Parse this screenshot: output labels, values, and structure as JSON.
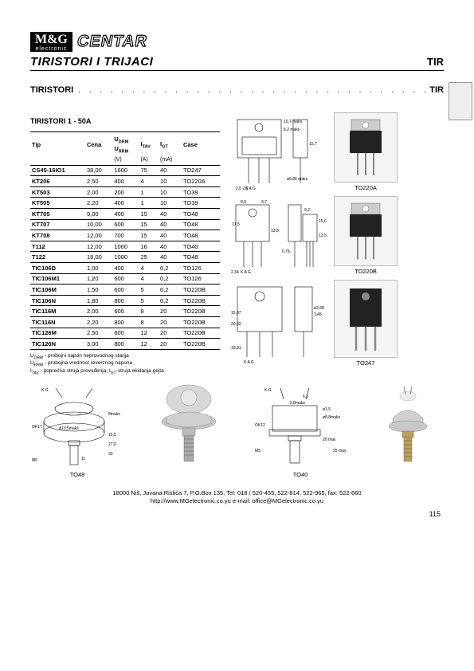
{
  "logo": {
    "top": "M&G",
    "bottom": "electronic",
    "centar": "CENTAR"
  },
  "title": {
    "left": "TIRISTORI I TRIJACI",
    "right": "TIR"
  },
  "subtitle": {
    "left": "TIRISTORI",
    "right": "TIR"
  },
  "section": "TIRISTORI  1 - 50A",
  "table": {
    "headers_r1": [
      "Tip",
      "Cena",
      "U",
      "I",
      "I",
      "Case"
    ],
    "headers_r1_sub": [
      "",
      "",
      "DRM",
      "TAV",
      "GT",
      ""
    ],
    "headers_r2_extra": "U",
    "headers_r2_extra_sub": "RRM",
    "headers_r2": [
      "",
      "",
      "(V)",
      "(A)",
      "(mA)",
      ""
    ],
    "rows": [
      [
        "CS45-16IO1",
        "38,00",
        "1600",
        "75",
        "40",
        "TO247"
      ],
      [
        "KT206",
        "2,50",
        "400",
        "4",
        "10",
        "TO220A"
      ],
      [
        "KT503",
        "2,00",
        "200",
        "1",
        "10",
        "TO39"
      ],
      [
        "KT505",
        "2,20",
        "400",
        "1",
        "10",
        "TO39"
      ],
      [
        "KT705",
        "9,00",
        "400",
        "15",
        "40",
        "TO48"
      ],
      [
        "KT707",
        "10,00",
        "600",
        "15",
        "40",
        "TO48"
      ],
      [
        "KT708",
        "12,00",
        "700",
        "15",
        "40",
        "TO48"
      ],
      [
        "T112",
        "12,00",
        "1000",
        "16",
        "40",
        "TO40"
      ],
      [
        "T122",
        "18,00",
        "1000",
        "25",
        "40",
        "TO48"
      ],
      [
        "TIC106D",
        "1,00",
        "400",
        "4",
        "0,2",
        "TO126"
      ],
      [
        "TIC106M1",
        "1,20",
        "600",
        "4",
        "0,2",
        "TO126"
      ],
      [
        "TIC106M",
        "1,50",
        "600",
        "5",
        "0,2",
        "TO220B"
      ],
      [
        "TIC106N",
        "1,80",
        "800",
        "5",
        "0,2",
        "TO220B"
      ],
      [
        "TIC116M",
        "2,00",
        "600",
        "8",
        "20",
        "TO220B"
      ],
      [
        "TIC116N",
        "2,20",
        "800",
        "8",
        "20",
        "TO220B"
      ],
      [
        "TIC126M",
        "2,50",
        "600",
        "12",
        "20",
        "TO220B"
      ],
      [
        "TIC126N",
        "3,00",
        "800",
        "12",
        "20",
        "TO220B"
      ]
    ]
  },
  "notes": {
    "l1a": "U",
    "l1s": "DRM",
    "l1b": " - probojni napon neprovodnog stanja",
    "l2a": "U",
    "l2s": "RRM",
    "l2b": " - probojna vrednost reverznog napona",
    "l3a": "I",
    "l3s": "TAV",
    "l3b": " - poprečna struja provođenja, I",
    "l3s2": "GT",
    "l3c": "-struja okidanja gejta"
  },
  "packages": {
    "p1": "TO220A",
    "p2": "TO220B",
    "p3": "TO247",
    "p4": "TO48",
    "p5": "TO40"
  },
  "footer": {
    "line1": "18000 Niš, Jovana Ristića 7, P.O.Box 135, Tel: 018 / 520-455, 522-814, 522-965, fax: 522-660",
    "line2": "http://www.MGelectronic.co.yu   e-mail: office@MGelectronic.co.yu"
  },
  "page": "115",
  "colors": {
    "text": "#000000",
    "bg": "#ffffff",
    "gray": "#eeeeee"
  }
}
